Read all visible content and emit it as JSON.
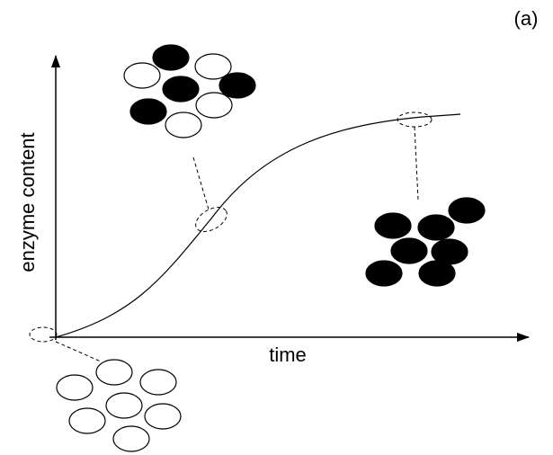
{
  "label": "(a)",
  "axes": {
    "y_label": "enzyme content",
    "x_label": "time"
  }
}
